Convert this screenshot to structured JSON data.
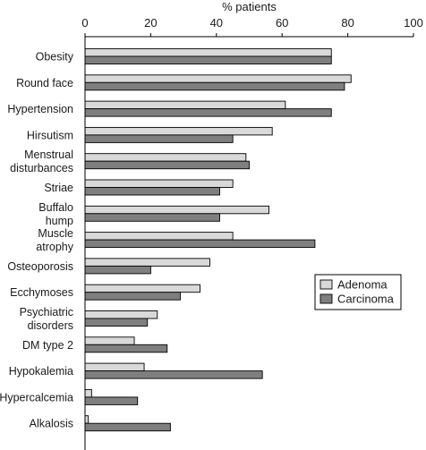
{
  "chart_data": {
    "type": "bar",
    "orientation": "horizontal",
    "xlabel": "% patients",
    "xlim": [
      0,
      100
    ],
    "x_ticks": [
      "0",
      "20",
      "40",
      "60",
      "80",
      "100"
    ],
    "categories": [
      [
        "Obesity"
      ],
      [
        "Round face"
      ],
      [
        "Hypertension"
      ],
      [
        "Hirsutism"
      ],
      [
        "Menstrual",
        "disturbances"
      ],
      [
        "Striae"
      ],
      [
        "Buffalo",
        "hump"
      ],
      [
        "Muscle",
        "atrophy"
      ],
      [
        "Osteoporosis"
      ],
      [
        "Ecchymoses"
      ],
      [
        "Psychiatric",
        "disorders"
      ],
      [
        "DM type 2"
      ],
      [
        "Hypokalemia"
      ],
      [
        "Hypercalcemia"
      ],
      [
        "Alkalosis"
      ]
    ],
    "series": [
      {
        "name": "Adenoma",
        "color": "#d9d9d9",
        "values": [
          75,
          81,
          61,
          57,
          49,
          45,
          56,
          45,
          38,
          35,
          22,
          15,
          18,
          2,
          1
        ]
      },
      {
        "name": "Carcinoma",
        "color": "#7f7f7f",
        "values": [
          75,
          79,
          75,
          45,
          50,
          41,
          41,
          70,
          20,
          29,
          19,
          25,
          54,
          16,
          26
        ]
      }
    ],
    "legend_position": "right",
    "grid": false
  }
}
